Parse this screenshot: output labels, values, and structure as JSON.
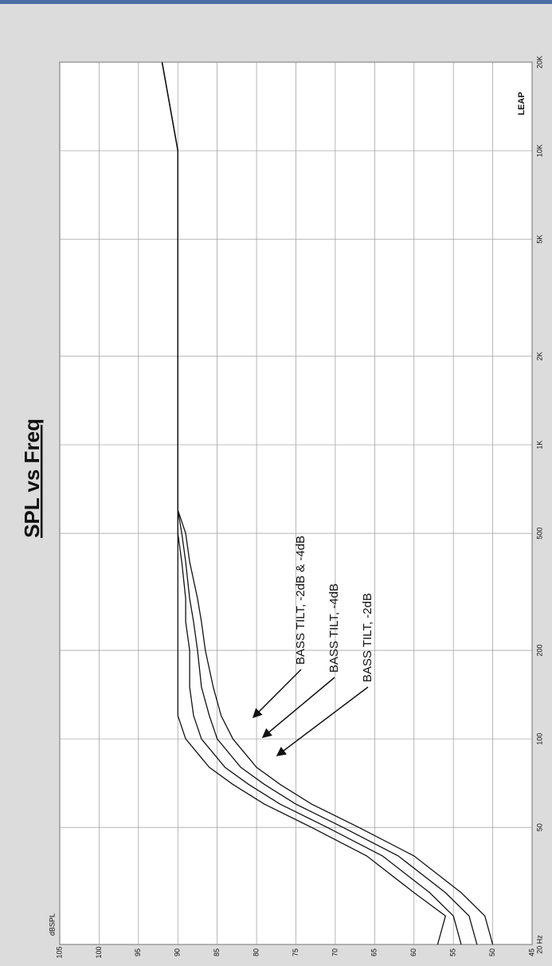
{
  "chart_data": {
    "type": "line",
    "title": "SPL vs Freq",
    "y_label": "dBSPL",
    "logo": "LEAP",
    "log_x": true,
    "grid": true,
    "color": "#111111",
    "x": [
      20,
      25,
      30,
      40,
      50,
      60,
      70,
      80,
      100,
      120,
      150,
      200,
      250,
      300,
      400,
      500,
      600,
      800,
      1000,
      2000,
      5000,
      10000,
      20000
    ],
    "series": [
      {
        "color": "#111111",
        "values": [
          57,
          56,
          60,
          66,
          73,
          79,
          83,
          86,
          89,
          90,
          90,
          90,
          90,
          90,
          90,
          90,
          90,
          90,
          90,
          90,
          90,
          90,
          92
        ]
      },
      {
        "color": "#111111",
        "values": [
          54,
          55,
          58,
          64,
          71,
          77,
          81,
          84,
          87,
          88,
          88.5,
          88.5,
          89,
          89,
          89.5,
          90,
          90,
          90,
          90,
          90,
          90,
          90,
          92
        ]
      },
      {
        "color": "#111111",
        "values": [
          52,
          53,
          56,
          62,
          69,
          75,
          79,
          82,
          85,
          86,
          87,
          87.5,
          88,
          88.5,
          89,
          89.5,
          90,
          90,
          90,
          90,
          90,
          90,
          92
        ]
      },
      {
        "color": "#111111",
        "values": [
          50,
          51,
          54,
          60,
          67,
          73,
          77,
          80,
          83,
          84.5,
          85.5,
          86.5,
          87,
          87.5,
          88.5,
          89,
          90,
          90,
          90,
          90,
          90,
          90,
          92
        ]
      }
    ],
    "xlim": [
      20,
      20000
    ],
    "xticks": [
      {
        "value": 20,
        "label": "20 Hz"
      },
      50,
      100,
      200,
      500,
      {
        "value": 1000,
        "label": "1K"
      },
      {
        "value": 2000,
        "label": "2K"
      },
      {
        "value": 5000,
        "label": "5K"
      },
      {
        "value": 10000,
        "label": "10K"
      },
      {
        "value": 20000,
        "label": "20K"
      }
    ],
    "ylim": [
      45,
      105
    ],
    "yticks": [
      105,
      100,
      95,
      90,
      85,
      80,
      75,
      70,
      65,
      60,
      55,
      50,
      45
    ],
    "annotations": [
      "BASS TILT, -2dB & -4dB",
      "BASS TILT, -4dB",
      "BASS TILT, -2dB"
    ]
  }
}
